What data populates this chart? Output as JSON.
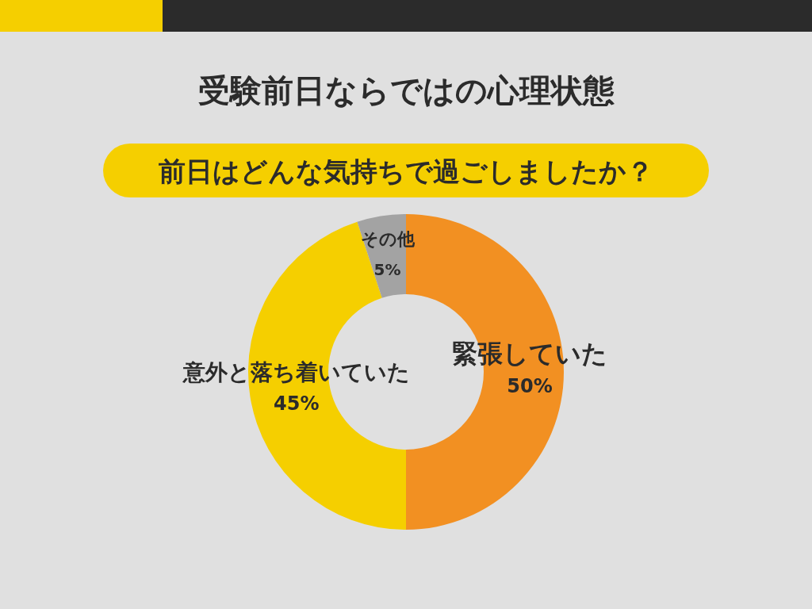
{
  "chart_data": {
    "type": "donut",
    "title": "受験前日ならではの心理状態",
    "subtitle": "前日はどんな気持ちで過ごしましたか？",
    "categories": [
      "緊張していた",
      "意外と落ち着いていた",
      "その他"
    ],
    "values": [
      50,
      45,
      5
    ],
    "colors": [
      "#f29022",
      "#f5cf00",
      "#a3a3a3"
    ],
    "value_labels": [
      "50%",
      "45%",
      "5%"
    ]
  }
}
